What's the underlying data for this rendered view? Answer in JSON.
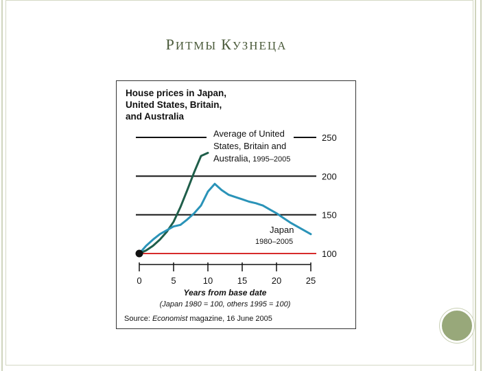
{
  "slide": {
    "title": "Ритмы Кузнеца"
  },
  "chart_data": {
    "type": "line",
    "title_lines": [
      "House prices in Japan,",
      "United States, Britain,",
      "and Australia"
    ],
    "xlabel": "Years from base date",
    "xlabel_note": "(Japan 1980 = 100, others 1995 = 100)",
    "source_prefix": "Source: ",
    "source_italic": "Economist",
    "source_suffix": " magazine, 16 June 2005",
    "x_ticks": [
      "0",
      "5",
      "10",
      "15",
      "20",
      "25"
    ],
    "y_ticks": [
      "100",
      "150",
      "200",
      "250"
    ],
    "xlim": [
      0,
      25
    ],
    "ylim": [
      100,
      250
    ],
    "reference_line": {
      "value": 100,
      "color": "#d62b2b"
    },
    "series": [
      {
        "label_lines": [
          "Average of United",
          "States, Britain and"
        ],
        "label_last": "Australia,",
        "label_period": " 1995–2005",
        "color": "#1f5e4a",
        "x": [
          0,
          1,
          2,
          3,
          4,
          5,
          6,
          7,
          8,
          9,
          10
        ],
        "y": [
          100,
          104,
          110,
          118,
          128,
          141,
          160,
          182,
          205,
          226,
          230
        ]
      },
      {
        "label_lines": [
          "Japan"
        ],
        "label_period": "1980–2005",
        "color": "#2a93b8",
        "x": [
          0,
          1,
          2,
          3,
          4,
          5,
          6,
          7,
          8,
          9,
          10,
          11,
          12,
          13,
          14,
          15,
          16,
          17,
          18,
          19,
          20,
          21,
          22,
          23,
          24,
          25
        ],
        "y": [
          100,
          110,
          118,
          125,
          130,
          135,
          137,
          144,
          152,
          162,
          180,
          190,
          182,
          176,
          173,
          170,
          167,
          165,
          162,
          157,
          152,
          146,
          140,
          135,
          130,
          125
        ]
      }
    ],
    "origin_marker": {
      "x": 0,
      "y": 100,
      "color": "#111111"
    },
    "grid": true,
    "legend": "inline labels"
  }
}
